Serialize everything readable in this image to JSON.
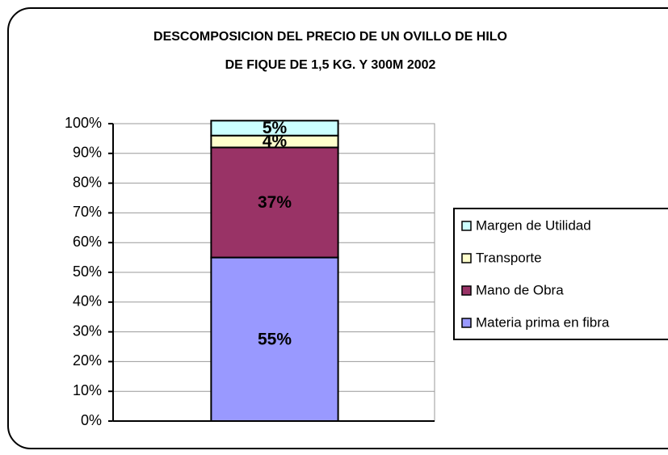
{
  "chart_data": {
    "type": "stacked_bar",
    "title": [
      "DESCOMPOSICION DEL PRECIO DE UN OVILLO DE HILO",
      "DE FIQUE DE 1,5 KG. Y 300M  2002"
    ],
    "categories": [
      null
    ],
    "series": [
      {
        "name": "Materia prima en fibra",
        "color": "#9999ff",
        "values": [
          55
        ],
        "value_labels": [
          "55%"
        ]
      },
      {
        "name": "Mano de Obra",
        "color": "#993366",
        "values": [
          37
        ],
        "value_labels": [
          "37%"
        ]
      },
      {
        "name": "Transporte",
        "color": "#ffffcc",
        "values": [
          4
        ],
        "value_labels": [
          "4%"
        ]
      },
      {
        "name": "Margen de Utilidad",
        "color": "#ccffff",
        "values": [
          5
        ],
        "value_labels": [
          "5%"
        ]
      }
    ],
    "ylim": [
      0,
      100
    ],
    "yticks": [
      {
        "value": 0,
        "label": "0%"
      },
      {
        "value": 10,
        "label": "10%"
      },
      {
        "value": 20,
        "label": "20%"
      },
      {
        "value": 30,
        "label": "30%"
      },
      {
        "value": 40,
        "label": "40%"
      },
      {
        "value": 50,
        "label": "50%"
      },
      {
        "value": 60,
        "label": "60%"
      },
      {
        "value": 70,
        "label": "70%"
      },
      {
        "value": 80,
        "label": "80%"
      },
      {
        "value": 90,
        "label": "90%"
      },
      {
        "value": 100,
        "label": "100%"
      }
    ],
    "grid": true,
    "legend": "right"
  }
}
